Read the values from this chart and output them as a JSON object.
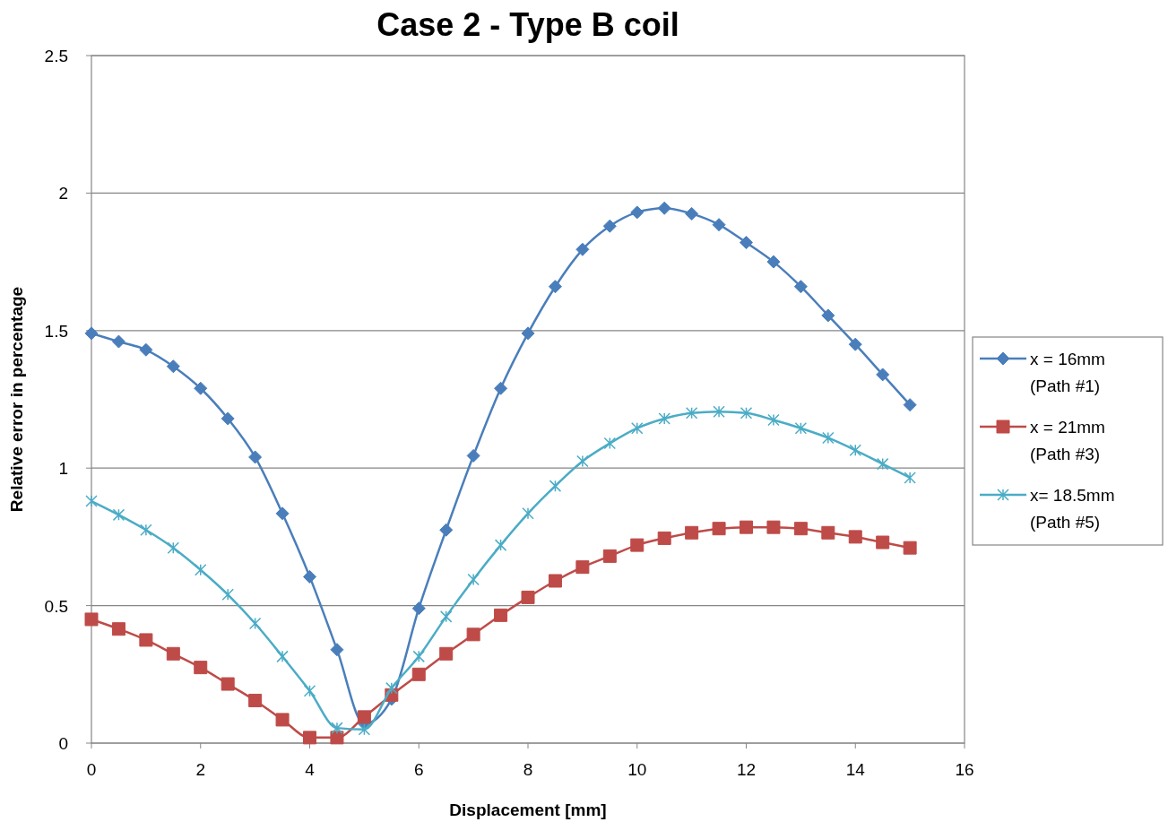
{
  "chart_data": {
    "type": "line",
    "title": "Case 2 - Type B coil",
    "xlabel": "Displacement [mm]",
    "ylabel": "Relative error in percentage",
    "x": [
      0,
      0.5,
      1,
      1.5,
      2,
      2.5,
      3,
      3.5,
      4,
      4.5,
      5,
      5.5,
      6,
      6.5,
      7,
      7.5,
      8,
      8.5,
      9,
      9.5,
      10,
      10.5,
      11,
      11.5,
      12,
      12.5,
      13,
      13.5,
      14,
      14.5,
      15
    ],
    "series": [
      {
        "name": "x = 16mm\n(Path #1)",
        "color": "#4a7ebb",
        "marker": "diamond",
        "values": [
          1.49,
          1.46,
          1.43,
          1.37,
          1.29,
          1.18,
          1.04,
          0.835,
          0.605,
          0.34,
          0.07,
          0.16,
          0.49,
          0.775,
          1.045,
          1.29,
          1.49,
          1.66,
          1.795,
          1.88,
          1.93,
          1.945,
          1.925,
          1.885,
          1.82,
          1.75,
          1.66,
          1.555,
          1.45,
          1.34,
          1.23
        ]
      },
      {
        "name": "x = 21mm\n(Path #3)",
        "color": "#be4b48",
        "marker": "square",
        "values": [
          0.45,
          0.415,
          0.375,
          0.325,
          0.275,
          0.215,
          0.155,
          0.085,
          0.02,
          0.02,
          0.095,
          0.175,
          0.25,
          0.325,
          0.395,
          0.465,
          0.53,
          0.59,
          0.64,
          0.68,
          0.72,
          0.745,
          0.765,
          0.78,
          0.785,
          0.785,
          0.78,
          0.765,
          0.75,
          0.73,
          0.71
        ]
      },
      {
        "name": "x= 18.5mm\n(Path #5)",
        "color": "#4bacc6",
        "marker": "cross",
        "values": [
          0.88,
          0.83,
          0.775,
          0.71,
          0.63,
          0.54,
          0.435,
          0.315,
          0.19,
          0.055,
          0.05,
          0.2,
          0.315,
          0.46,
          0.595,
          0.72,
          0.835,
          0.935,
          1.025,
          1.09,
          1.145,
          1.18,
          1.2,
          1.205,
          1.2,
          1.175,
          1.145,
          1.11,
          1.065,
          1.015,
          0.965
        ]
      }
    ],
    "xlim": [
      0,
      16
    ],
    "xticks": [
      0,
      2,
      4,
      6,
      8,
      10,
      12,
      14,
      16
    ],
    "ylim": [
      0,
      2.5
    ],
    "yticks": [
      0,
      0.5,
      1,
      1.5,
      2,
      2.5
    ],
    "grid": "y",
    "legend": "right",
    "line_style": "solid"
  }
}
